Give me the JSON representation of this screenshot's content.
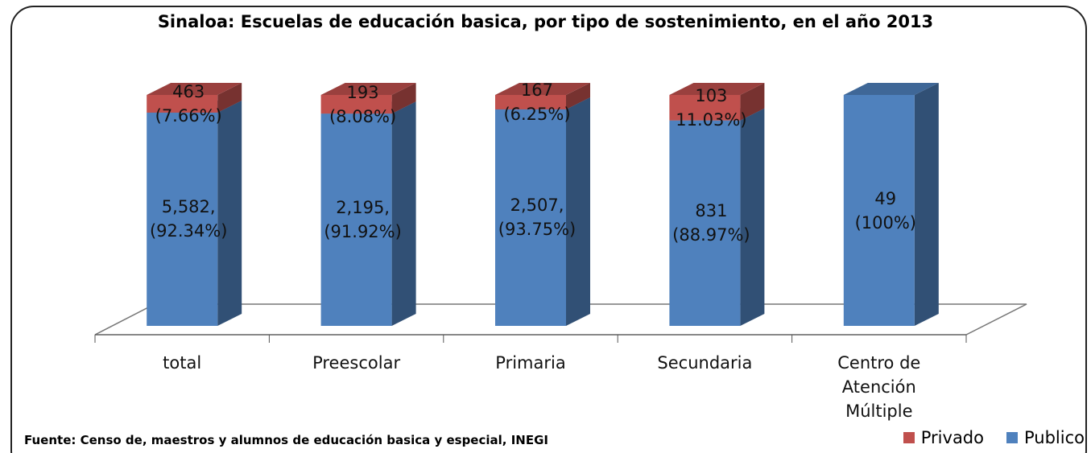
{
  "chart_data": {
    "type": "bar3d_stacked",
    "title": "Sinaloa: Escuelas de educación  basica, por tipo de sostenimiento, en el año 2013",
    "source": "Fuente: Censo de, maestros y alumnos de educación basica y especial, INEGI",
    "categories": [
      "total",
      "Preescolar",
      "Primaria",
      "Secundaria",
      "Centro de Atención Múltiple"
    ],
    "ylim": [
      0,
      100
    ],
    "series": [
      {
        "name": "Publico",
        "color": "#4f81bd",
        "values": [
          92.34,
          91.92,
          93.75,
          88.97,
          100
        ],
        "value_labels": [
          "5,582,\n(92.34%)",
          "2,195,\n(91.92%)",
          "2,507,\n(93.75%)",
          "831\n(88.97%)",
          "49\n(100%)"
        ]
      },
      {
        "name": "Privado",
        "color": "#c0504d",
        "values": [
          7.66,
          8.08,
          6.25,
          11.03,
          0
        ],
        "value_labels": [
          "463\n(7.66%)",
          "193\n(8.08%)",
          "167\n(6.25%)",
          "103\n11.03%)",
          null
        ]
      }
    ],
    "legend": "bottom-right"
  }
}
